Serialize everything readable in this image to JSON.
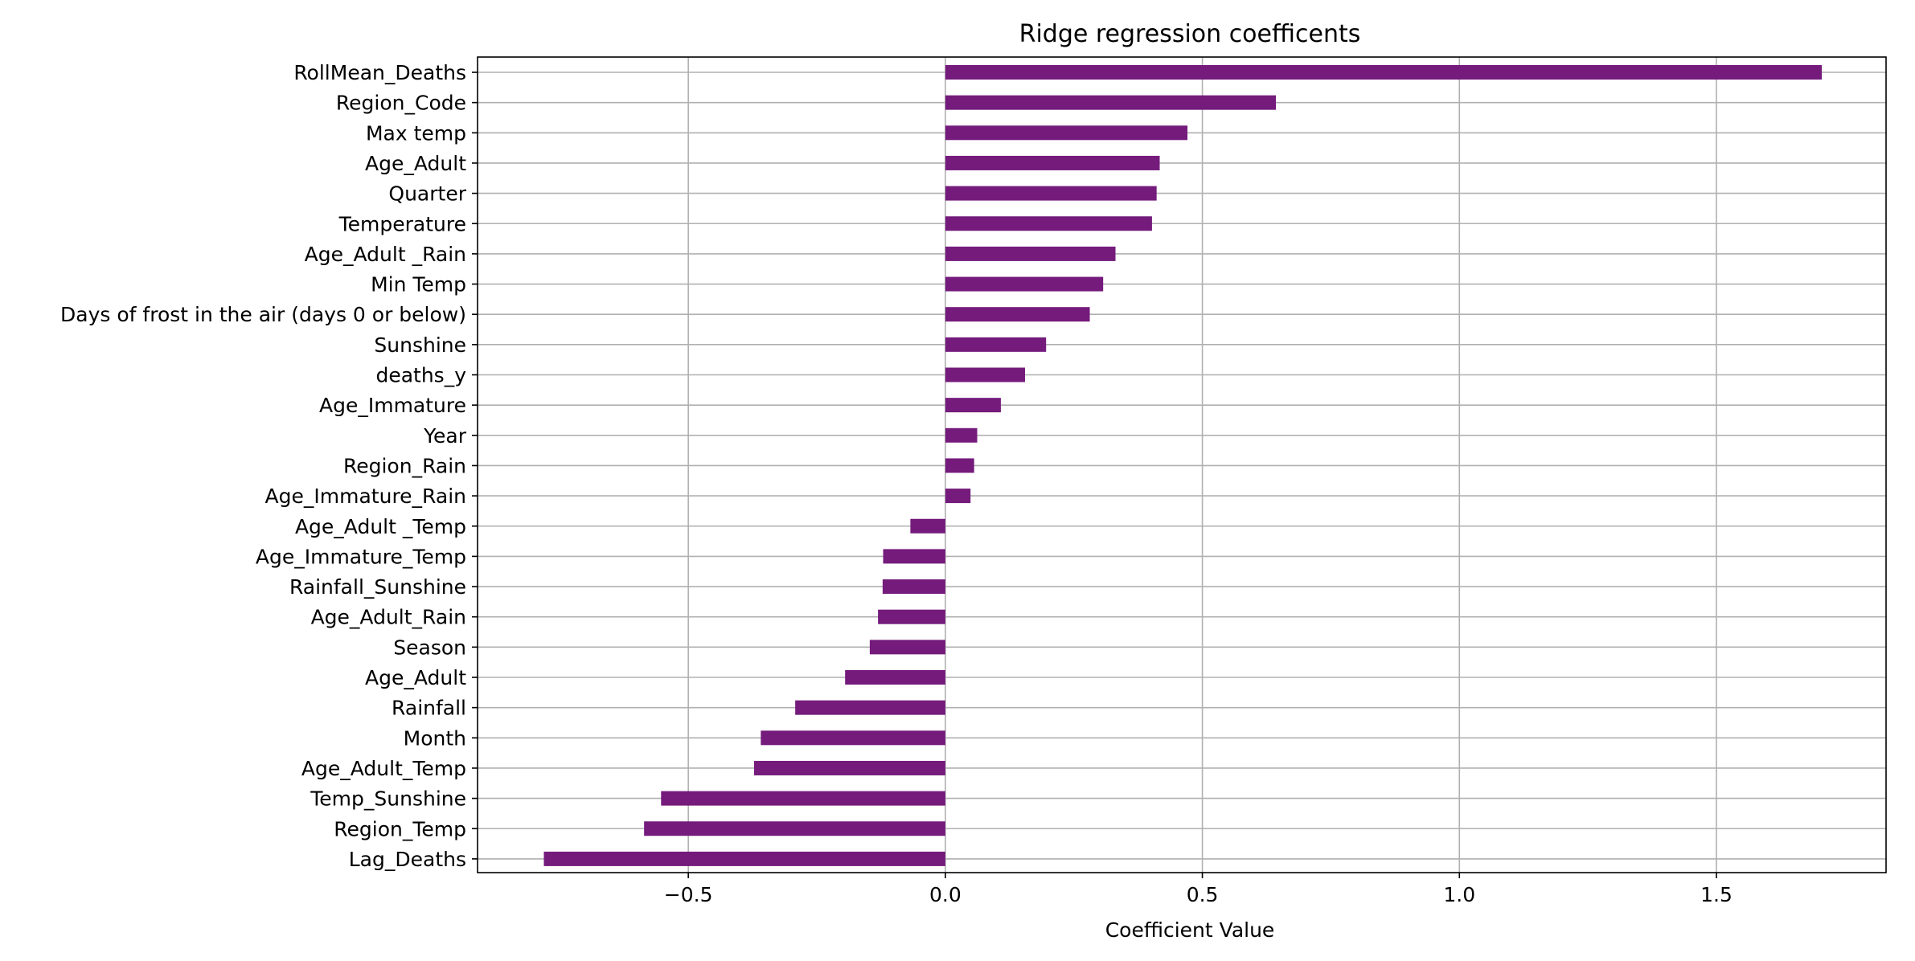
{
  "chart_data": {
    "type": "bar",
    "orientation": "horizontal",
    "title": "Ridge regression coefficents",
    "xlabel": "Coefficient Value",
    "ylabel": "",
    "xlim": [
      -0.91,
      1.83
    ],
    "xticks": [
      -0.5,
      0.0,
      0.5,
      1.0,
      1.5
    ],
    "xtick_labels": [
      "−0.5",
      "0.0",
      "0.5",
      "1.0",
      "1.5"
    ],
    "grid": true,
    "bar_color": "#741b7c",
    "grid_color": "#b0b0b0",
    "categories": [
      "RollMean_Deaths",
      "Region_Code",
      "Max  temp",
      "Age_Adult",
      "Quarter",
      "Temperature",
      "Age_Adult _Rain",
      "Min Temp",
      "Days of frost in the air (days 0 or below)",
      "Sunshine",
      "deaths_y",
      "Age_Immature",
      "Year",
      "Region_Rain",
      "Age_Immature_Rain",
      "Age_Adult _Temp",
      "Age_Immature_Temp",
      "Rainfall_Sunshine",
      "Age_Adult_Rain",
      "Season",
      "Age_Adult ",
      "Rainfall",
      "Month",
      "Age_Adult_Temp",
      "Temp_Sunshine",
      "Region_Temp",
      "Lag_Deaths"
    ],
    "values": [
      1.705,
      0.643,
      0.471,
      0.417,
      0.411,
      0.402,
      0.331,
      0.307,
      0.281,
      0.196,
      0.155,
      0.108,
      0.062,
      0.056,
      0.049,
      -0.068,
      -0.121,
      -0.122,
      -0.131,
      -0.147,
      -0.195,
      -0.292,
      -0.359,
      -0.372,
      -0.553,
      -0.586,
      -0.781
    ]
  }
}
